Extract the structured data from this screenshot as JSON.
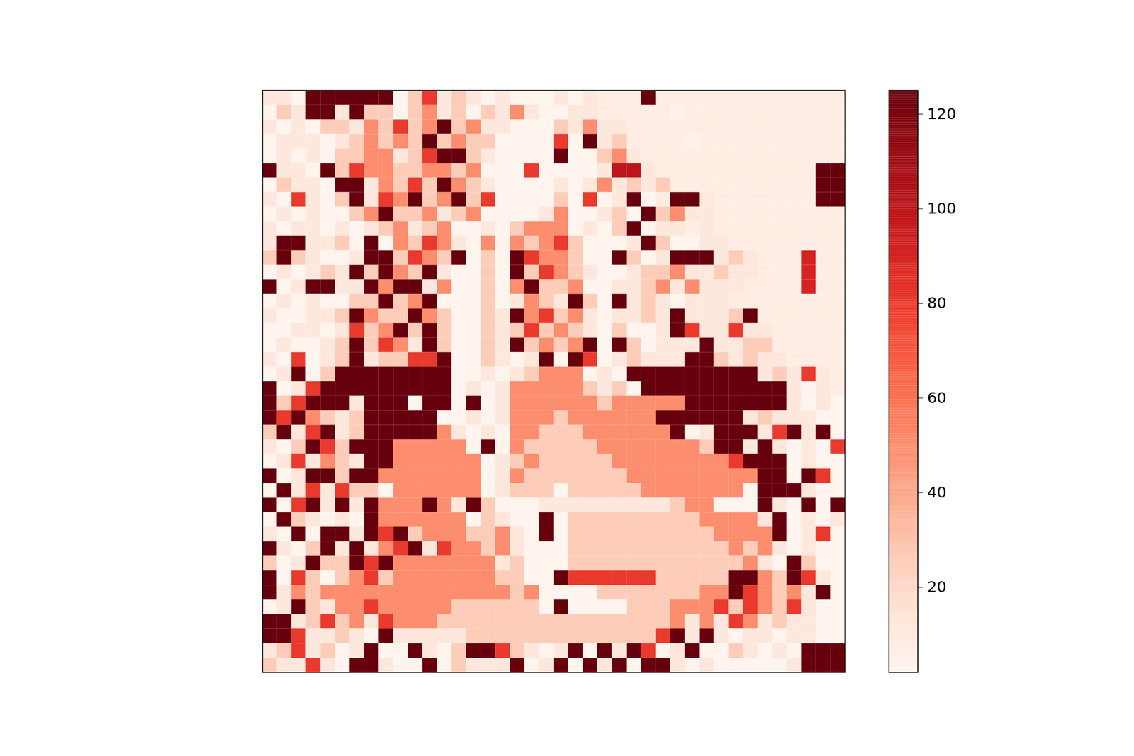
{
  "chart_data": {
    "type": "heatmap",
    "color": "reds",
    "tick_labels": false,
    "colorbar": {
      "lim": [
        2,
        125
      ],
      "ticks": [
        20,
        40,
        60,
        80,
        100,
        120
      ]
    },
    "values": [
      [
        12,
        12,
        3,
        125,
        125,
        125,
        125,
        125,
        125,
        3,
        25,
        80,
        12,
        25,
        12,
        3,
        12,
        3,
        3,
        3,
        12,
        3,
        12,
        8,
        8,
        8,
        125,
        8,
        8,
        8,
        8,
        8,
        8,
        8,
        8,
        8,
        8,
        8,
        8,
        8
      ],
      [
        3,
        25,
        12,
        125,
        125,
        12,
        125,
        25,
        25,
        3,
        25,
        50,
        12,
        25,
        3,
        25,
        12,
        50,
        12,
        3,
        3,
        12,
        12,
        8,
        8,
        8,
        8,
        8,
        5,
        8,
        8,
        8,
        8,
        8,
        8,
        8,
        8,
        8,
        8,
        8
      ],
      [
        12,
        3,
        12,
        3,
        25,
        25,
        12,
        50,
        25,
        80,
        25,
        50,
        125,
        25,
        50,
        12,
        12,
        3,
        3,
        3,
        25,
        12,
        50,
        12,
        12,
        8,
        8,
        8,
        8,
        8,
        8,
        8,
        8,
        8,
        8,
        8,
        8,
        8,
        8,
        8
      ],
      [
        3,
        12,
        12,
        12,
        3,
        12,
        25,
        50,
        25,
        50,
        25,
        125,
        25,
        50,
        25,
        25,
        3,
        3,
        3,
        3,
        80,
        3,
        125,
        12,
        25,
        8,
        8,
        8,
        8,
        5,
        8,
        8,
        8,
        8,
        8,
        8,
        8,
        8,
        8,
        8
      ],
      [
        3,
        12,
        3,
        12,
        3,
        25,
        25,
        50,
        50,
        12,
        25,
        80,
        125,
        125,
        25,
        12,
        3,
        3,
        3,
        3,
        125,
        3,
        3,
        25,
        50,
        12,
        8,
        8,
        8,
        8,
        8,
        8,
        8,
        8,
        8,
        8,
        8,
        8,
        8,
        8
      ],
      [
        125,
        12,
        12,
        3,
        125,
        25,
        80,
        50,
        50,
        25,
        25,
        50,
        50,
        25,
        50,
        3,
        3,
        3,
        80,
        3,
        3,
        3,
        3,
        12,
        100,
        100,
        12,
        8,
        8,
        8,
        8,
        8,
        8,
        8,
        8,
        8,
        8,
        8,
        125,
        125
      ],
      [
        3,
        25,
        12,
        12,
        3,
        125,
        125,
        12,
        50,
        25,
        80,
        25,
        125,
        50,
        25,
        12,
        3,
        3,
        3,
        3,
        12,
        3,
        12,
        50,
        12,
        25,
        12,
        25,
        8,
        8,
        8,
        8,
        8,
        8,
        8,
        8,
        8,
        8,
        125,
        125
      ],
      [
        12,
        3,
        80,
        12,
        3,
        25,
        125,
        12,
        80,
        50,
        125,
        25,
        50,
        125,
        25,
        80,
        3,
        3,
        3,
        3,
        25,
        3,
        80,
        3,
        12,
        125,
        3,
        8,
        125,
        125,
        12,
        8,
        8,
        8,
        8,
        8,
        8,
        8,
        125,
        125
      ],
      [
        3,
        12,
        3,
        12,
        3,
        3,
        25,
        50,
        125,
        25,
        25,
        50,
        12,
        25,
        50,
        3,
        3,
        3,
        3,
        12,
        50,
        3,
        3,
        12,
        25,
        3,
        125,
        25,
        50,
        12,
        12,
        8,
        8,
        8,
        8,
        8,
        8,
        8,
        8,
        8
      ],
      [
        12,
        3,
        12,
        12,
        3,
        12,
        3,
        12,
        25,
        50,
        12,
        25,
        50,
        3,
        3,
        12,
        3,
        25,
        50,
        50,
        50,
        3,
        12,
        3,
        25,
        125,
        3,
        12,
        12,
        8,
        12,
        8,
        8,
        8,
        8,
        8,
        8,
        8,
        8,
        8
      ],
      [
        12,
        125,
        125,
        12,
        12,
        25,
        3,
        125,
        3,
        50,
        25,
        80,
        50,
        12,
        3,
        50,
        3,
        50,
        25,
        50,
        80,
        25,
        3,
        3,
        3,
        12,
        125,
        25,
        3,
        3,
        12,
        12,
        8,
        8,
        8,
        8,
        8,
        8,
        8,
        8
      ],
      [
        25,
        125,
        25,
        12,
        3,
        3,
        12,
        125,
        125,
        25,
        80,
        50,
        25,
        125,
        3,
        25,
        3,
        125,
        80,
        50,
        50,
        25,
        3,
        3,
        125,
        25,
        3,
        12,
        125,
        125,
        125,
        12,
        25,
        12,
        8,
        8,
        8,
        90,
        8,
        8
      ],
      [
        3,
        12,
        3,
        12,
        25,
        12,
        125,
        25,
        125,
        50,
        25,
        125,
        12,
        3,
        3,
        25,
        3,
        125,
        25,
        80,
        50,
        25,
        12,
        3,
        3,
        12,
        25,
        25,
        50,
        12,
        12,
        25,
        12,
        12,
        8,
        8,
        8,
        90,
        8,
        8
      ],
      [
        125,
        3,
        12,
        125,
        125,
        12,
        12,
        125,
        50,
        125,
        125,
        12,
        50,
        3,
        3,
        25,
        3,
        50,
        125,
        25,
        25,
        50,
        3,
        3,
        12,
        12,
        25,
        50,
        12,
        50,
        12,
        12,
        12,
        8,
        8,
        8,
        8,
        90,
        8,
        8
      ],
      [
        3,
        12,
        3,
        12,
        3,
        3,
        25,
        25,
        125,
        25,
        50,
        125,
        3,
        3,
        3,
        25,
        3,
        12,
        50,
        25,
        12,
        125,
        25,
        3,
        125,
        12,
        25,
        12,
        3,
        12,
        12,
        12,
        8,
        8,
        8,
        8,
        8,
        8,
        8,
        8
      ],
      [
        12,
        3,
        3,
        12,
        12,
        25,
        125,
        50,
        25,
        25,
        125,
        50,
        25,
        3,
        3,
        25,
        12,
        125,
        50,
        80,
        25,
        50,
        12,
        3,
        12,
        12,
        25,
        12,
        125,
        12,
        12,
        12,
        25,
        125,
        8,
        8,
        8,
        8,
        8,
        8
      ],
      [
        3,
        3,
        12,
        12,
        3,
        12,
        80,
        25,
        50,
        125,
        25,
        125,
        25,
        3,
        3,
        25,
        12,
        25,
        80,
        25,
        50,
        25,
        12,
        3,
        25,
        3,
        3,
        12,
        125,
        80,
        12,
        12,
        80,
        12,
        12,
        8,
        8,
        8,
        8,
        8
      ],
      [
        3,
        12,
        3,
        3,
        12,
        25,
        125,
        25,
        80,
        50,
        12,
        125,
        25,
        3,
        3,
        25,
        12,
        125,
        25,
        50,
        25,
        50,
        125,
        3,
        125,
        25,
        3,
        12,
        12,
        12,
        125,
        12,
        12,
        25,
        25,
        8,
        8,
        8,
        8,
        8
      ],
      [
        12,
        3,
        80,
        3,
        12,
        25,
        125,
        12,
        25,
        25,
        80,
        80,
        125,
        3,
        3,
        25,
        12,
        3,
        12,
        125,
        3,
        125,
        80,
        3,
        12,
        25,
        12,
        12,
        12,
        125,
        125,
        25,
        12,
        25,
        12,
        12,
        8,
        8,
        8,
        8
      ],
      [
        3,
        12,
        125,
        3,
        25,
        125,
        125,
        125,
        125,
        125,
        125,
        125,
        125,
        3,
        3,
        12,
        3,
        12,
        25,
        50,
        50,
        50,
        3,
        12,
        3,
        125,
        125,
        125,
        125,
        125,
        125,
        125,
        125,
        125,
        12,
        25,
        12,
        80,
        12,
        8
      ],
      [
        125,
        3,
        12,
        80,
        125,
        125,
        125,
        125,
        125,
        125,
        125,
        125,
        125,
        3,
        12,
        3,
        12,
        50,
        50,
        50,
        50,
        50,
        25,
        12,
        25,
        3,
        125,
        125,
        125,
        125,
        125,
        125,
        125,
        125,
        125,
        125,
        12,
        3,
        12,
        8
      ],
      [
        125,
        25,
        80,
        125,
        125,
        125,
        12,
        125,
        125,
        125,
        3,
        125,
        125,
        3,
        125,
        3,
        12,
        50,
        50,
        50,
        50,
        50,
        50,
        25,
        50,
        50,
        50,
        50,
        50,
        125,
        125,
        125,
        125,
        125,
        125,
        125,
        12,
        3,
        12,
        3
      ],
      [
        125,
        80,
        125,
        50,
        25,
        12,
        25,
        125,
        125,
        125,
        125,
        125,
        3,
        3,
        12,
        3,
        12,
        50,
        50,
        50,
        25,
        50,
        50,
        50,
        50,
        50,
        50,
        125,
        125,
        125,
        125,
        125,
        125,
        12,
        25,
        12,
        12,
        12,
        3,
        3
      ],
      [
        25,
        125,
        12,
        80,
        125,
        12,
        25,
        125,
        125,
        125,
        125,
        125,
        50,
        12,
        3,
        12,
        3,
        50,
        50,
        25,
        25,
        25,
        50,
        50,
        50,
        50,
        50,
        50,
        125,
        3,
        12,
        125,
        125,
        125,
        12,
        80,
        125,
        12,
        125,
        3
      ],
      [
        12,
        3,
        25,
        125,
        80,
        25,
        125,
        125,
        125,
        50,
        50,
        50,
        50,
        50,
        3,
        125,
        3,
        50,
        25,
        25,
        25,
        25,
        25,
        50,
        50,
        50,
        50,
        50,
        50,
        50,
        25,
        125,
        125,
        12,
        125,
        12,
        3,
        12,
        3,
        80
      ],
      [
        3,
        12,
        80,
        12,
        50,
        25,
        12,
        125,
        125,
        50,
        50,
        50,
        50,
        50,
        50,
        3,
        12,
        25,
        50,
        25,
        25,
        25,
        25,
        25,
        50,
        50,
        50,
        50,
        50,
        50,
        50,
        50,
        80,
        125,
        125,
        125,
        3,
        12,
        3,
        3
      ],
      [
        125,
        3,
        12,
        125,
        125,
        25,
        125,
        125,
        50,
        50,
        50,
        50,
        50,
        50,
        50,
        3,
        12,
        50,
        25,
        25,
        25,
        25,
        25,
        25,
        25,
        50,
        50,
        50,
        50,
        50,
        50,
        50,
        50,
        50,
        125,
        125,
        3,
        125,
        80,
        3
      ],
      [
        3,
        125,
        12,
        80,
        12,
        80,
        25,
        25,
        3,
        50,
        50,
        50,
        50,
        50,
        50,
        3,
        12,
        25,
        25,
        25,
        3,
        25,
        25,
        25,
        25,
        25,
        50,
        50,
        50,
        50,
        50,
        50,
        50,
        3,
        125,
        125,
        125,
        12,
        3,
        3
      ],
      [
        125,
        3,
        80,
        125,
        12,
        125,
        12,
        125,
        50,
        50,
        50,
        125,
        50,
        12,
        125,
        25,
        3,
        3,
        3,
        12,
        12,
        12,
        12,
        12,
        12,
        12,
        12,
        12,
        25,
        50,
        50,
        3,
        3,
        3,
        125,
        12,
        3,
        125,
        3,
        125
      ],
      [
        3,
        125,
        25,
        12,
        3,
        12,
        3,
        125,
        50,
        50,
        50,
        50,
        50,
        50,
        3,
        25,
        12,
        3,
        3,
        125,
        3,
        25,
        25,
        25,
        25,
        25,
        25,
        25,
        25,
        25,
        50,
        50,
        50,
        50,
        12,
        125,
        3,
        12,
        3,
        12
      ],
      [
        12,
        3,
        125,
        3,
        125,
        125,
        12,
        125,
        80,
        125,
        25,
        50,
        50,
        50,
        25,
        25,
        50,
        12,
        3,
        125,
        3,
        25,
        25,
        25,
        25,
        25,
        25,
        25,
        25,
        25,
        25,
        50,
        50,
        50,
        50,
        125,
        3,
        12,
        80,
        3
      ],
      [
        125,
        12,
        3,
        25,
        125,
        12,
        125,
        12,
        50,
        80,
        125,
        12,
        80,
        50,
        50,
        25,
        50,
        12,
        3,
        3,
        3,
        25,
        25,
        25,
        25,
        25,
        25,
        25,
        25,
        25,
        25,
        25,
        50,
        25,
        50,
        12,
        3,
        12,
        3,
        3
      ],
      [
        25,
        3,
        12,
        125,
        25,
        25,
        125,
        80,
        125,
        50,
        50,
        50,
        50,
        50,
        50,
        50,
        12,
        25,
        3,
        3,
        3,
        25,
        25,
        25,
        25,
        25,
        25,
        25,
        25,
        25,
        25,
        25,
        25,
        50,
        12,
        3,
        125,
        25,
        3,
        3
      ],
      [
        125,
        3,
        80,
        25,
        3,
        25,
        50,
        80,
        25,
        50,
        50,
        50,
        50,
        50,
        50,
        50,
        25,
        25,
        3,
        3,
        125,
        80,
        80,
        80,
        80,
        80,
        80,
        25,
        25,
        25,
        25,
        25,
        125,
        125,
        50,
        25,
        125,
        80,
        12,
        3
      ],
      [
        125,
        12,
        50,
        25,
        50,
        50,
        50,
        50,
        50,
        50,
        50,
        50,
        50,
        50,
        50,
        50,
        50,
        25,
        50,
        3,
        3,
        3,
        3,
        25,
        25,
        25,
        25,
        25,
        25,
        25,
        50,
        50,
        125,
        80,
        50,
        25,
        50,
        12,
        125,
        3
      ],
      [
        3,
        12,
        125,
        25,
        12,
        50,
        50,
        80,
        50,
        50,
        50,
        50,
        50,
        25,
        25,
        25,
        25,
        25,
        25,
        3,
        125,
        3,
        3,
        3,
        3,
        25,
        25,
        25,
        50,
        50,
        50,
        80,
        25,
        80,
        50,
        25,
        80,
        12,
        3,
        3
      ],
      [
        125,
        125,
        12,
        25,
        80,
        25,
        50,
        12,
        80,
        50,
        50,
        50,
        25,
        25,
        25,
        25,
        25,
        25,
        25,
        25,
        25,
        25,
        25,
        25,
        25,
        25,
        25,
        25,
        50,
        12,
        50,
        12,
        80,
        50,
        12,
        25,
        12,
        12,
        3,
        3
      ],
      [
        125,
        125,
        80,
        12,
        12,
        25,
        12,
        3,
        125,
        12,
        12,
        12,
        12,
        12,
        25,
        25,
        25,
        25,
        25,
        25,
        25,
        25,
        25,
        25,
        25,
        25,
        25,
        80,
        125,
        12,
        125,
        12,
        3,
        12,
        12,
        3,
        12,
        12,
        3,
        3
      ],
      [
        12,
        25,
        80,
        12,
        25,
        3,
        12,
        125,
        3,
        3,
        125,
        12,
        3,
        25,
        125,
        125,
        80,
        25,
        12,
        3,
        12,
        125,
        3,
        125,
        12,
        125,
        80,
        3,
        12,
        125,
        3,
        3,
        25,
        12,
        3,
        12,
        3,
        125,
        125,
        125
      ],
      [
        25,
        12,
        12,
        80,
        12,
        3,
        125,
        125,
        12,
        3,
        3,
        125,
        3,
        25,
        12,
        12,
        12,
        125,
        3,
        12,
        125,
        3,
        125,
        12,
        125,
        3,
        125,
        125,
        12,
        3,
        12,
        3,
        3,
        3,
        3,
        3,
        12,
        125,
        125,
        125
      ]
    ]
  }
}
